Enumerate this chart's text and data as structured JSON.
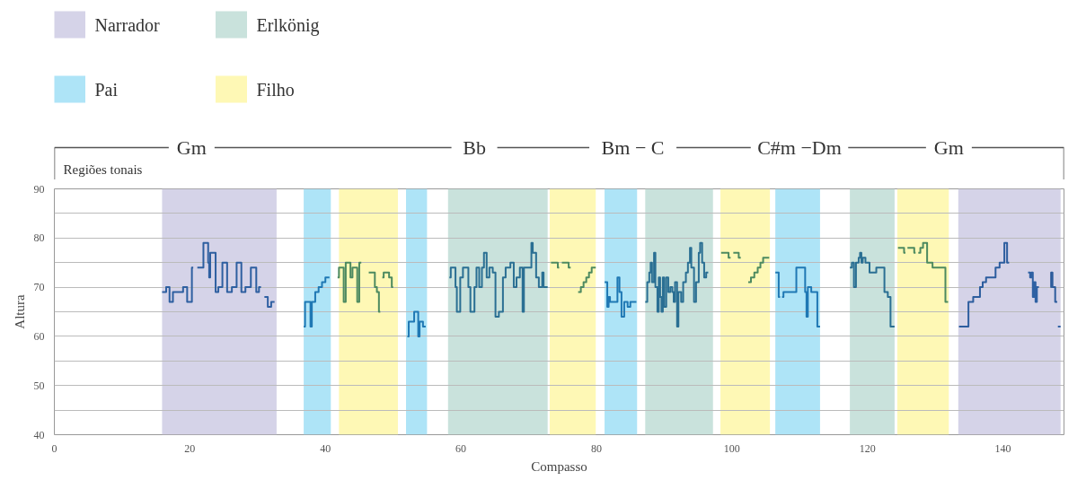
{
  "chart_data": {
    "type": "step",
    "xlabel": "Compasso",
    "ylabel": "Altura",
    "xlim": [
      0,
      149
    ],
    "ylim": [
      40,
      90
    ],
    "xticks": [
      0,
      20,
      40,
      60,
      80,
      100,
      120,
      140
    ],
    "yticks": [
      40,
      {
        "value": 45,
        "label": null
      },
      50,
      {
        "value": 55,
        "label": null
      },
      60,
      {
        "value": 65,
        "label": null
      },
      70,
      {
        "value": 75,
        "label": null
      },
      80,
      {
        "value": 85,
        "label": null
      },
      90
    ],
    "grid": "y",
    "legend": "top left",
    "annotations": [
      "Regiões tonais",
      "Gm",
      "Bb",
      "Bm − C",
      "C#m −Dm",
      "Gm"
    ],
    "bands": [
      {
        "axis": "x",
        "from": 15.9,
        "to": 32.8,
        "label": "Narrador",
        "color": "#d5d3e8"
      },
      {
        "axis": "x",
        "from": 133.4,
        "to": 148.5,
        "color": "#d5d3e8"
      },
      {
        "axis": "x",
        "from": 36.8,
        "to": 40.8,
        "label": "Pai",
        "color": "#aee4f7"
      },
      {
        "axis": "x",
        "from": 51.9,
        "to": 55,
        "color": "#aee4f7"
      },
      {
        "axis": "x",
        "from": 81.2,
        "to": 86,
        "color": "#aee4f7"
      },
      {
        "axis": "x",
        "from": 106.4,
        "to": 113,
        "color": "#aee4f7"
      },
      {
        "axis": "x",
        "from": 58.1,
        "to": 72.8,
        "label": "Erlkönig",
        "color": "#c9e2dc"
      },
      {
        "axis": "x",
        "from": 87.2,
        "to": 97.2,
        "color": "#c9e2dc"
      },
      {
        "axis": "x",
        "from": 117.4,
        "to": 124,
        "color": "#c9e2dc"
      },
      {
        "axis": "x",
        "from": 42,
        "to": 50.7,
        "label": "Filho",
        "color": "#fef8b5"
      },
      {
        "axis": "x",
        "from": 73.1,
        "to": 79.9,
        "color": "#fef8b5"
      },
      {
        "axis": "x",
        "from": 98.3,
        "to": 105.6,
        "color": "#fef8b5"
      },
      {
        "axis": "x",
        "from": 124.4,
        "to": 132,
        "color": "#fef8b5"
      }
    ],
    "series": [
      {
        "color": "#2e5fa0",
        "x": [
          15.9,
          16.5,
          17.0,
          17.5,
          19.0,
          19.6,
          20.3,
          20.5
        ],
        "values": [
          69,
          70,
          67,
          69,
          70,
          67,
          74,
          74
        ]
      },
      {
        "color": "#2e5fa0",
        "x": [
          21.1,
          22.0,
          22.7,
          22.85,
          23.0,
          23.8,
          24.2,
          24.8,
          25.5,
          26.2,
          26.9,
          27.6,
          28.2,
          29.0,
          29.8,
          30.2,
          30.5
        ],
        "values": [
          74,
          79,
          75,
          72,
          77,
          69,
          70,
          75,
          69,
          70,
          75,
          69,
          70,
          74,
          69,
          70,
          70
        ]
      },
      {
        "color": "#3060a2",
        "x": [
          31.0,
          31.5,
          32.0,
          32.5
        ],
        "values": [
          68,
          66,
          67,
          67
        ]
      },
      {
        "color": "#1f78b4",
        "x": [
          36.8,
          37.0,
          37.8,
          38.0,
          38.5,
          39.0,
          39.5,
          40.0,
          40.6
        ],
        "values": [
          62,
          67,
          62,
          67,
          69,
          70,
          71,
          72,
          72
        ]
      },
      {
        "color": "#4d8a60",
        "x": [
          41.8,
          42.0,
          42.7,
          43.0,
          43.7,
          44.0,
          44.7,
          45.0,
          45.3
        ],
        "values": [
          72,
          74,
          67,
          75,
          72,
          74,
          67,
          75,
          75
        ]
      },
      {
        "color": "#4d8a60",
        "x": [
          46.4,
          47.2,
          47.3,
          47.6,
          47.9,
          48.1
        ],
        "values": [
          73,
          73,
          70,
          69,
          65,
          65
        ]
      },
      {
        "color": "#4d8a60",
        "x": [
          48.4,
          48.6,
          49.4,
          49.8,
          50.0
        ],
        "values": [
          72,
          73,
          72,
          70,
          70
        ]
      },
      {
        "color": "#1f78b4",
        "x": [
          52.1,
          52.3,
          53.1,
          53.7,
          53.9,
          54.4,
          54.8
        ],
        "values": [
          60,
          63,
          65,
          60,
          63,
          62,
          62
        ]
      },
      {
        "color": "#2a6f93",
        "x": [
          58.3,
          58.5,
          59.2,
          59.4,
          59.9,
          60.3,
          61.1,
          61.4,
          62.0,
          62.3,
          62.7,
          63.1,
          63.4,
          63.8,
          64.2,
          64.7,
          65.1,
          65.6,
          66.2,
          66.6,
          67.3,
          67.8,
          68.2,
          68.7,
          69.1,
          69.3,
          70.4,
          70.6,
          71.1,
          71.5,
          72.0,
          72.2,
          72.8
        ],
        "values": [
          72,
          74,
          70,
          65,
          72,
          74,
          70,
          65,
          70,
          74,
          70,
          74,
          77,
          72,
          74,
          73,
          64,
          65,
          72,
          74,
          75,
          70,
          72,
          74,
          65,
          74,
          79,
          77,
          72,
          70,
          73,
          70,
          70
        ]
      },
      {
        "color": "#4d8a60",
        "x": [
          73.3,
          74.3,
          74.5
        ],
        "values": [
          75,
          74,
          74
        ]
      },
      {
        "color": "#4d8a60",
        "x": [
          74.9,
          75.9,
          76.2
        ],
        "values": [
          75,
          74,
          74
        ]
      },
      {
        "color": "#4d8a60",
        "x": [
          77.3,
          77.7,
          78.1,
          78.5,
          78.9,
          79.3,
          79.9
        ],
        "values": [
          69,
          70,
          71,
          72,
          73,
          74,
          74
        ]
      },
      {
        "color": "#1f78b4",
        "x": [
          81.2,
          81.6,
          81.8,
          82.0,
          83.1,
          83.4,
          83.7,
          84.1,
          84.6,
          85.0,
          85.9
        ],
        "values": [
          71,
          66,
          68,
          67,
          72,
          69,
          64,
          67,
          66,
          67,
          67
        ]
      },
      {
        "color": "#2a6f93",
        "x": [
          87.2,
          87.5,
          87.8,
          88.0,
          88.2,
          88.5,
          88.7,
          89.0,
          89.2,
          89.4,
          89.6,
          89.8,
          90.0,
          90.3,
          90.6,
          90.9,
          91.2,
          91.4,
          91.6,
          91.9,
          92.1,
          92.5,
          92.8,
          93.2,
          93.5,
          93.8,
          94.0,
          94.4,
          94.7,
          95.1,
          95.3,
          95.6,
          95.9,
          96.2,
          96.5
        ],
        "values": [
          67,
          71,
          73,
          75,
          71,
          77,
          70,
          65,
          72,
          68,
          65,
          72,
          66,
          72,
          69,
          70,
          69,
          67,
          71,
          62,
          69,
          67,
          71,
          73,
          75,
          78,
          74,
          67,
          71,
          77,
          79,
          75,
          72,
          73,
          73
        ]
      },
      {
        "color": "#4d8a60",
        "x": [
          98.4,
          99.5,
          99.8
        ],
        "values": [
          77,
          76,
          76
        ]
      },
      {
        "color": "#4d8a60",
        "x": [
          100.2,
          101.0,
          101.3
        ],
        "values": [
          77,
          76,
          76
        ]
      },
      {
        "color": "#4d8a60",
        "x": [
          102.4,
          102.8,
          103.3,
          103.8,
          104.2,
          104.6,
          105.5
        ],
        "values": [
          71,
          72,
          73,
          74,
          75,
          76,
          76
        ]
      },
      {
        "color": "#1f78b4",
        "x": [
          106.4,
          106.9,
          107.1
        ],
        "values": [
          73,
          68,
          68
        ]
      },
      {
        "color": "#1f78b4",
        "x": [
          107.4,
          107.6,
          109.5,
          110.8,
          111.0,
          111.2,
          111.7,
          112.6,
          113.0
        ],
        "values": [
          68,
          69,
          74,
          69,
          64,
          70,
          69,
          62,
          62
        ]
      },
      {
        "color": "#2a6f93",
        "x": [
          117.4,
          117.7,
          118.0,
          118.3,
          118.7,
          118.9,
          119.1,
          119.3,
          119.7,
          120.3,
          121.3,
          122.5,
          123.0,
          123.4,
          124.0
        ],
        "values": [
          74,
          75,
          70,
          75,
          76,
          77,
          75,
          76,
          75,
          73,
          74,
          69,
          68,
          62,
          62
        ]
      },
      {
        "color": "#4d8a60",
        "x": [
          124.5,
          125.4,
          125.6
        ],
        "values": [
          78,
          77,
          77
        ]
      },
      {
        "color": "#4d8a60",
        "x": [
          125.9,
          126.9,
          127.1
        ],
        "values": [
          78,
          77,
          77
        ]
      },
      {
        "color": "#4d8a60",
        "x": [
          127.5,
          127.8,
          128.2,
          128.8,
          129.6,
          131.5,
          131.9
        ],
        "values": [
          77,
          78,
          79,
          75,
          74,
          67,
          67
        ]
      },
      {
        "color": "#2c5d9e",
        "x": [
          133.5,
          134.9,
          135.6,
          136.6,
          137.0,
          137.5,
          138.9,
          139.5,
          140.2,
          140.6,
          140.9
        ],
        "values": [
          62,
          67,
          68,
          70,
          71,
          72,
          74,
          75,
          79,
          75,
          75
        ]
      },
      {
        "color": "#2f61a3",
        "x": [
          143.7,
          144.0,
          144.2,
          144.4,
          144.6,
          144.8,
          145.0,
          145.3
        ],
        "values": [
          73,
          72,
          73,
          68,
          71,
          67,
          70,
          70
        ]
      },
      {
        "color": "#2d5c9c",
        "x": [
          147.0,
          147.1,
          147.3,
          147.7,
          148.0
        ],
        "values": [
          70,
          73,
          70,
          67,
          67
        ]
      },
      {
        "color": "#3162a4",
        "x": [
          148.1,
          148.5
        ],
        "values": [
          62,
          62
        ]
      }
    ]
  }
}
